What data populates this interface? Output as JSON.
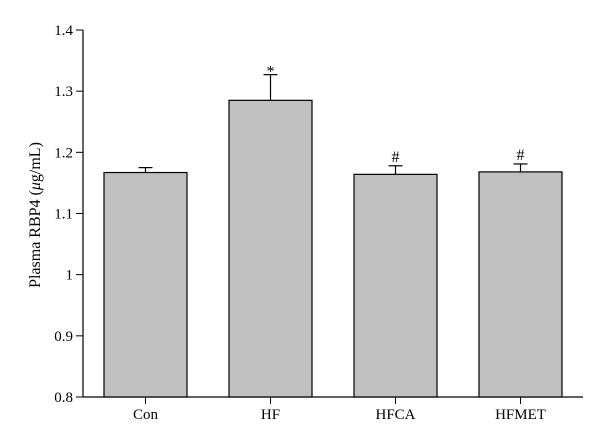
{
  "chart_data": {
    "type": "bar",
    "title": "",
    "xlabel": "",
    "ylabel": "Plasma RBP4 (μg/mL)",
    "ylabel_parts": {
      "prefix": "Plasma RBP4 (",
      "mu": "μ",
      "suffix": "g/mL)"
    },
    "categories": [
      "Con",
      "HF",
      "HFCA",
      "HFMET"
    ],
    "values": [
      1.167,
      1.285,
      1.164,
      1.168
    ],
    "errors": [
      0.008,
      0.042,
      0.014,
      0.013
    ],
    "annotations": [
      "",
      "*",
      "#",
      "#"
    ],
    "ylim": [
      0.8,
      1.4
    ],
    "yticks": [
      0.8,
      0.9,
      1.0,
      1.1,
      1.2,
      1.3,
      1.4
    ],
    "ytick_labels": [
      "0.8",
      "0.9",
      "1",
      "1.1",
      "1.2",
      "1.3",
      "1.4"
    ],
    "grid": false,
    "colors": {
      "bar_fill": "#c0c0c0",
      "bar_stroke": "#000000"
    }
  }
}
